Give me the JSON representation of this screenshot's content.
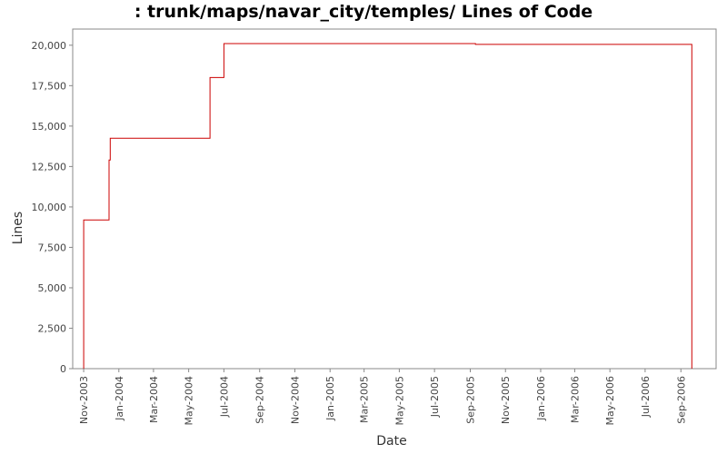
{
  "chart_data": {
    "type": "line",
    "title": ": trunk/maps/navar_city/temples/ Lines of Code",
    "xlabel": "Date",
    "ylabel": "Lines",
    "line_style": "step",
    "ylim": [
      0,
      21000
    ],
    "xlim": [
      "2003-10-13",
      "2006-11-01"
    ],
    "yticks": [
      {
        "value": 0,
        "label": "0"
      },
      {
        "value": 2500,
        "label": "2,500"
      },
      {
        "value": 5000,
        "label": "5,000"
      },
      {
        "value": 7500,
        "label": "7,500"
      },
      {
        "value": 10000,
        "label": "10,000"
      },
      {
        "value": 12500,
        "label": "12,500"
      },
      {
        "value": 15000,
        "label": "15,000"
      },
      {
        "value": 17500,
        "label": "17,500"
      },
      {
        "value": 20000,
        "label": "20,000"
      }
    ],
    "xticks": [
      {
        "date": "2003-11-01",
        "label": "Nov-2003"
      },
      {
        "date": "2004-01-01",
        "label": "Jan-2004"
      },
      {
        "date": "2004-03-01",
        "label": "Mar-2004"
      },
      {
        "date": "2004-05-01",
        "label": "May-2004"
      },
      {
        "date": "2004-07-01",
        "label": "Jul-2004"
      },
      {
        "date": "2004-09-01",
        "label": "Sep-2004"
      },
      {
        "date": "2004-11-01",
        "label": "Nov-2004"
      },
      {
        "date": "2005-01-01",
        "label": "Jan-2005"
      },
      {
        "date": "2005-03-01",
        "label": "Mar-2005"
      },
      {
        "date": "2005-05-01",
        "label": "May-2005"
      },
      {
        "date": "2005-07-01",
        "label": "Jul-2005"
      },
      {
        "date": "2005-09-01",
        "label": "Sep-2005"
      },
      {
        "date": "2005-11-01",
        "label": "Nov-2005"
      },
      {
        "date": "2006-01-01",
        "label": "Jan-2006"
      },
      {
        "date": "2006-03-01",
        "label": "Mar-2006"
      },
      {
        "date": "2006-05-01",
        "label": "May-2006"
      },
      {
        "date": "2006-07-01",
        "label": "Jul-2006"
      },
      {
        "date": "2006-09-01",
        "label": "Sep-2006"
      }
    ],
    "series": [
      {
        "color": "#cc0000",
        "points": [
          {
            "date": "2003-11-01",
            "value": 0
          },
          {
            "date": "2003-11-01",
            "value": 9200
          },
          {
            "date": "2003-12-15",
            "value": 9200
          },
          {
            "date": "2003-12-15",
            "value": 12900
          },
          {
            "date": "2003-12-17",
            "value": 12900
          },
          {
            "date": "2003-12-17",
            "value": 14250
          },
          {
            "date": "2004-06-07",
            "value": 14250
          },
          {
            "date": "2004-06-07",
            "value": 18000
          },
          {
            "date": "2004-07-01",
            "value": 18000
          },
          {
            "date": "2004-07-01",
            "value": 20100
          },
          {
            "date": "2005-09-10",
            "value": 20100
          },
          {
            "date": "2005-09-10",
            "value": 20050
          },
          {
            "date": "2006-09-20",
            "value": 20050
          },
          {
            "date": "2006-09-20",
            "value": 0
          }
        ]
      }
    ],
    "grid": false,
    "legend": "none"
  }
}
